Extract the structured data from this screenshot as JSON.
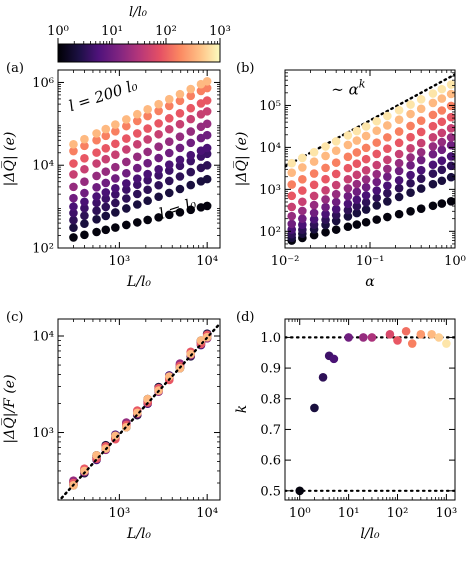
{
  "colorbar": {
    "label": "l/l₀",
    "tick_labels": [
      "10⁰",
      "10¹",
      "10²",
      "10³"
    ],
    "range": [
      1,
      1000
    ],
    "scale": "log",
    "colormap": "magma"
  },
  "chart_data": [
    {
      "id": "a",
      "panel_label": "(a)",
      "type": "scatter",
      "xscale": "log",
      "yscale": "log",
      "xlabel": "L/l₀",
      "ylabel": "|ΔQ̅| (e)",
      "xlim": [
        200,
        14000
      ],
      "ylim": [
        100,
        2000000
      ],
      "xticks": [
        1000,
        10000
      ],
      "xtick_labels": [
        "10³",
        "10⁴"
      ],
      "yticks": [
        100,
        10000,
        1000000
      ],
      "ytick_labels": [
        "10²",
        "10⁴",
        "10⁶"
      ],
      "annotations": [
        {
          "text": "l = 200 l₀",
          "at": [
            280,
            200000
          ]
        },
        {
          "text": "l = l₀",
          "at": [
            3000,
            500
          ]
        }
      ],
      "x": [
        300,
        400,
        550,
        700,
        900,
        1200,
        1600,
        2100,
        2800,
        3700,
        4900,
        6500,
        8500,
        10000
      ],
      "series": [
        {
          "l": 1,
          "slope": 0.5,
          "y0": 180
        },
        {
          "l": 2,
          "slope": 0.77,
          "y0": 310
        },
        {
          "l": 3,
          "slope": 0.87,
          "y0": 470
        },
        {
          "l": 4,
          "slope": 0.94,
          "y0": 700
        },
        {
          "l": 5,
          "slope": 0.93,
          "y0": 1000
        },
        {
          "l": 10,
          "slope": 1.0,
          "y0": 1600
        },
        {
          "l": 20,
          "slope": 1.0,
          "y0": 3000
        },
        {
          "l": 50,
          "slope": 1.0,
          "y0": 6000
        },
        {
          "l": 100,
          "slope": 1.0,
          "y0": 11000
        },
        {
          "l": 200,
          "slope": 1.0,
          "y0": 22000
        },
        {
          "l": 500,
          "slope": 1.0,
          "y0": 32000
        }
      ]
    },
    {
      "id": "b",
      "panel_label": "(b)",
      "type": "scatter",
      "xscale": "log",
      "yscale": "log",
      "xlabel": "α",
      "ylabel": "|ΔQ̅| (e)",
      "xlim": [
        0.01,
        1.0
      ],
      "ylim": [
        40,
        700000
      ],
      "xticks": [
        0.01,
        0.1,
        1.0
      ],
      "xtick_labels": [
        "10⁻²",
        "10⁻¹",
        "10⁰"
      ],
      "yticks": [
        100,
        1000,
        10000,
        100000
      ],
      "ytick_labels": [
        "10²",
        "10³",
        "10⁴",
        "10⁵"
      ],
      "annotations": [
        {
          "text": "∼ α",
          "sup": "k",
          "at": [
            0.035,
            180000
          ]
        }
      ],
      "fit_line": {
        "x": [
          0.01,
          1.0
        ],
        "y": [
          3500,
          550000
        ],
        "style": "dotted"
      },
      "x": [
        0.012,
        0.016,
        0.022,
        0.03,
        0.04,
        0.055,
        0.07,
        0.09,
        0.12,
        0.16,
        0.22,
        0.3,
        0.4,
        0.55,
        0.7,
        0.9
      ],
      "series": [
        {
          "l": 1,
          "slope": 0.5,
          "y0": 60
        },
        {
          "l": 2,
          "slope": 0.77,
          "y0": 70
        },
        {
          "l": 3,
          "slope": 0.87,
          "y0": 85
        },
        {
          "l": 5,
          "slope": 0.93,
          "y0": 110
        },
        {
          "l": 10,
          "slope": 1.0,
          "y0": 150
        },
        {
          "l": 20,
          "slope": 1.0,
          "y0": 230
        },
        {
          "l": 50,
          "slope": 1.0,
          "y0": 380
        },
        {
          "l": 100,
          "slope": 1.0,
          "y0": 700
        },
        {
          "l": 200,
          "slope": 1.0,
          "y0": 1300
        },
        {
          "l": 500,
          "slope": 1.0,
          "y0": 2500
        },
        {
          "l": 1000,
          "slope": 1.0,
          "y0": 4200
        }
      ]
    },
    {
      "id": "c",
      "panel_label": "(c)",
      "type": "scatter",
      "xscale": "log",
      "yscale": "log",
      "xlabel": "L/l₀",
      "ylabel": "|ΔQ̅|/F (e)",
      "xlim": [
        200,
        14000
      ],
      "ylim": [
        200,
        15000
      ],
      "xticks": [
        1000,
        10000
      ],
      "xtick_labels": [
        "10³",
        "10⁴"
      ],
      "yticks": [
        1000,
        10000
      ],
      "ytick_labels": [
        "10³",
        "10⁴"
      ],
      "fit_line": {
        "x": [
          220,
          13500
        ],
        "y": [
          210,
          13000
        ],
        "style": "dotted"
      },
      "x": [
        300,
        400,
        550,
        700,
        900,
        1200,
        1600,
        2100,
        2800,
        3700,
        4900,
        6500,
        8500,
        10000
      ],
      "l_values": [
        1,
        2,
        5,
        20,
        100,
        500
      ]
    },
    {
      "id": "d",
      "panel_label": "(d)",
      "type": "scatter",
      "xscale": "log",
      "yscale": "linear",
      "xlabel": "l/l₀",
      "ylabel": "k",
      "xlim": [
        0.5,
        1500
      ],
      "ylim": [
        0.47,
        1.06
      ],
      "xticks": [
        1,
        10,
        100,
        1000
      ],
      "xtick_labels": [
        "10⁰",
        "10¹",
        "10²",
        "10³"
      ],
      "yticks": [
        0.5,
        0.6,
        0.7,
        0.8,
        0.9,
        1.0
      ],
      "ytick_labels": [
        "0.5",
        "0.6",
        "0.7",
        "0.8",
        "0.9",
        "1.0"
      ],
      "hlines": [
        0.5,
        1.0
      ],
      "points": [
        {
          "x": 1,
          "y": 0.5
        },
        {
          "x": 2,
          "y": 0.77
        },
        {
          "x": 3,
          "y": 0.87
        },
        {
          "x": 4,
          "y": 0.94
        },
        {
          "x": 5,
          "y": 0.93
        },
        {
          "x": 10,
          "y": 1.0
        },
        {
          "x": 20,
          "y": 1.0
        },
        {
          "x": 30,
          "y": 1.0
        },
        {
          "x": 70,
          "y": 1.01
        },
        {
          "x": 100,
          "y": 0.99
        },
        {
          "x": 150,
          "y": 1.02
        },
        {
          "x": 200,
          "y": 0.98
        },
        {
          "x": 300,
          "y": 1.01
        },
        {
          "x": 500,
          "y": 1.01
        },
        {
          "x": 700,
          "y": 1.0
        },
        {
          "x": 1000,
          "y": 0.98
        }
      ]
    }
  ]
}
